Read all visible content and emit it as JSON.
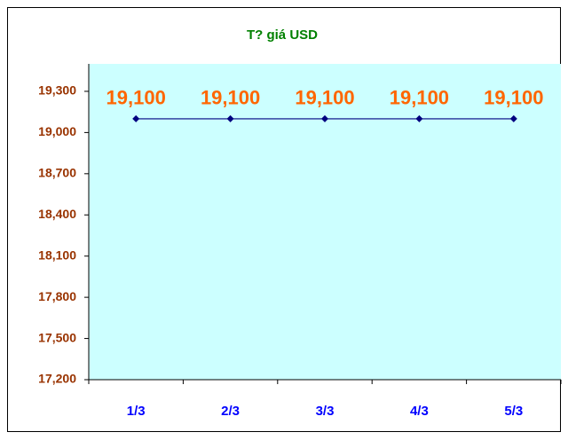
{
  "chart_data": {
    "type": "line",
    "title": "T? giá USD",
    "categories": [
      "1/3",
      "2/3",
      "3/3",
      "4/3",
      "5/3"
    ],
    "values": [
      19100,
      19100,
      19100,
      19100,
      19100
    ],
    "value_labels": [
      "19,100",
      "19,100",
      "19,100",
      "19,100",
      "19,100"
    ],
    "color": "#000080",
    "marker_color": "#000080",
    "label_color": "#ff6600",
    "ylim": [
      17200,
      19500
    ],
    "yticks": [
      {
        "value": 17200,
        "label": "17,200"
      },
      {
        "value": 17500,
        "label": "17,500"
      },
      {
        "value": 17800,
        "label": "17,800"
      },
      {
        "value": 18100,
        "label": "18,100"
      },
      {
        "value": 18400,
        "label": "18,400"
      },
      {
        "value": 18700,
        "label": "18,700"
      },
      {
        "value": 19000,
        "label": "19,000"
      },
      {
        "value": 19300,
        "label": "19,300"
      }
    ],
    "grid": false
  }
}
